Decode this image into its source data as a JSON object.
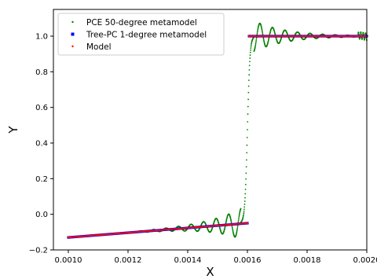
{
  "chart_data": {
    "type": "scatter",
    "title": "",
    "xlabel": "X",
    "ylabel": "Y",
    "xlim": [
      0.00095,
      0.002
    ],
    "ylim": [
      -0.2,
      1.15
    ],
    "xticks": [
      0.001,
      0.0012,
      0.0014,
      0.0016,
      0.0018,
      0.002
    ],
    "xtick_labels": [
      "0.0010",
      "0.0012",
      "0.0014",
      "0.0016",
      "0.0018",
      "0.0020"
    ],
    "yticks": [
      -0.2,
      0.0,
      0.2,
      0.4,
      0.6,
      0.8,
      1.0
    ],
    "ytick_labels": [
      "−0.2",
      "0.0",
      "0.2",
      "0.4",
      "0.6",
      "0.8",
      "1.0"
    ],
    "grid": false,
    "legend_position": "upper-left",
    "model": {
      "x_range": [
        0.001,
        0.002
      ],
      "step_at": 0.0016,
      "lower_branch": {
        "y_start": -0.13,
        "y_end": -0.05
      },
      "upper_value": 1.0
    },
    "series": [
      {
        "name": "PCE 50-degree metamodel",
        "color": "#008000",
        "marker": "small-dot",
        "description_values": {
          "overshoot_max": 1.09,
          "undershoot_min": -0.15
        }
      },
      {
        "name": "Tree-PC 1-degree metamodel",
        "color": "#0000ff",
        "marker": "square"
      },
      {
        "name": "Model",
        "color": "#ff0000",
        "marker": "small-dot"
      }
    ]
  }
}
